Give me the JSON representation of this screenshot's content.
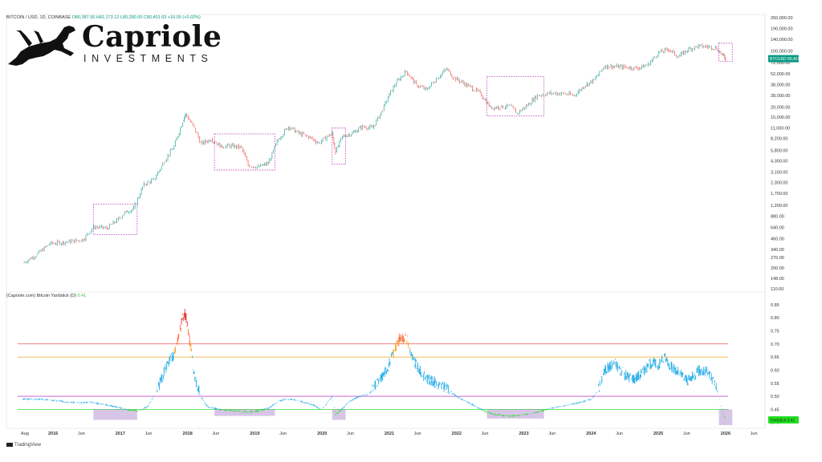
{
  "header": {
    "symbol": "BITCOIN / USD, 1D, COINBASE",
    "ohlc": "O80,387.56  H81,173.12  L80,280.00  C80,401.63  +16.00 (+0.02%)"
  },
  "brand": {
    "name": "Capriole",
    "subtitle": "INVESTMENTS"
  },
  "footer": {
    "source": "TradingView"
  },
  "colors": {
    "accent": "#089981",
    "yardstick": "#29aee6",
    "green": "#22dd22",
    "box": "#c54fc5"
  },
  "chart_data": [
    {
      "type": "line",
      "title": "BITCOIN / USD, 1D, COINBASE",
      "y_scale": "log",
      "y_ticks": [
        "260,000.00",
        "190,000.00",
        "140,000.00",
        "100,000.00",
        "72,000.00",
        "52,000.00",
        "38,000.00",
        "28,000.00",
        "20,000.00",
        "15,000.00",
        "11,000.00",
        "8,200.00",
        "5,800.00",
        "4,300.00",
        "3,100.00",
        "2,300.00",
        "1,700.00",
        "1,200.00",
        "880.00",
        "640.00",
        "460.00",
        "340.00",
        "270.00",
        "200.00",
        "148.00",
        "110.00"
      ],
      "last_value_label": "BTCUSD  80,401.63",
      "series": [
        {
          "x": [
            2015.55,
            2015.75,
            2015.95,
            2016.2,
            2016.45,
            2016.6,
            2016.8,
            2016.95,
            2017.05,
            2017.2,
            2017.35,
            2017.5,
            2017.65,
            2017.8,
            2017.93,
            2017.97,
            2018.1,
            2018.2,
            2018.35,
            2018.5,
            2018.65,
            2018.8,
            2018.9,
            2019.05,
            2019.2,
            2019.35,
            2019.5,
            2019.65,
            2019.8,
            2019.95,
            2020.15,
            2020.2,
            2020.3,
            2020.45,
            2020.6,
            2020.75,
            2020.9,
            2021.0,
            2021.1,
            2021.25,
            2021.4,
            2021.55,
            2021.7,
            2021.85,
            2021.95,
            2022.1,
            2022.35,
            2022.5,
            2022.65,
            2022.8,
            2022.9,
            2023.05,
            2023.2,
            2023.4,
            2023.6,
            2023.75,
            2023.9,
            2024.05,
            2024.2,
            2024.5,
            2024.7,
            2024.85,
            2025.0,
            2025.15,
            2025.3,
            2025.45,
            2025.6,
            2025.75,
            2025.85,
            2025.95,
            2026.0
          ],
          "y": [
            230,
            290,
            400,
            420,
            450,
            650,
            620,
            780,
            950,
            1100,
            2200,
            2500,
            4200,
            6500,
            13500,
            16500,
            11000,
            7000,
            8000,
            6500,
            6600,
            6300,
            3800,
            3600,
            4000,
            8000,
            11500,
            9500,
            8500,
            7200,
            9500,
            5500,
            8600,
            9500,
            11500,
            11000,
            18500,
            29000,
            40000,
            56000,
            38000,
            33000,
            45000,
            60000,
            47000,
            40000,
            30000,
            20000,
            20000,
            20500,
            16800,
            21000,
            28000,
            30000,
            29500,
            28000,
            37000,
            44000,
            65000,
            63000,
            61000,
            68000,
            95000,
            105000,
            85000,
            106000,
            115000,
            113000,
            110000,
            90000,
            80400
          ]
        }
      ],
      "highlight_boxes": [
        {
          "x": [
            2016.6,
            2017.25
          ],
          "y": [
            520,
            1240
          ]
        },
        {
          "x": [
            2018.4,
            2019.3
          ],
          "y": [
            3300,
            9300
          ]
        },
        {
          "x": [
            2020.15,
            2020.35
          ],
          "y": [
            3900,
            11000
          ]
        },
        {
          "x": [
            2022.45,
            2023.3
          ],
          "y": [
            15600,
            48000
          ]
        },
        {
          "x": [
            2025.9,
            2026.1
          ],
          "y": [
            74000,
            125000
          ]
        }
      ]
    },
    {
      "type": "line",
      "title": "(Capriole.com) Bitcoin Yardstick (D)",
      "last_value": "0.41",
      "value_badge": "Yardstick  0.41",
      "y_ticks": [
        "0.85",
        "0.80",
        "0.75",
        "0.70",
        "0.65",
        "0.60",
        "0.55",
        "0.50",
        "0.45",
        "0.40"
      ],
      "ylim": [
        0.39,
        0.88
      ],
      "levels": [
        {
          "value": 0.7,
          "color": "#ef5350"
        },
        {
          "value": 0.65,
          "color": "#f5a623"
        },
        {
          "value": 0.5,
          "color": "#c54fc5"
        },
        {
          "value": 0.45,
          "color": "#33dd33"
        }
      ],
      "series": [
        {
          "name": "Yardstick",
          "x": [
            2015.55,
            2015.8,
            2016.0,
            2016.2,
            2016.4,
            2016.55,
            2016.75,
            2016.95,
            2017.1,
            2017.25,
            2017.4,
            2017.5,
            2017.6,
            2017.7,
            2017.8,
            2017.87,
            2017.95,
            2017.98,
            2018.05,
            2018.1,
            2018.2,
            2018.3,
            2018.5,
            2018.7,
            2018.9,
            2019.05,
            2019.2,
            2019.35,
            2019.45,
            2019.55,
            2019.7,
            2019.85,
            2020.0,
            2020.15,
            2020.2,
            2020.25,
            2020.4,
            2020.55,
            2020.7,
            2020.85,
            2020.95,
            2021.05,
            2021.15,
            2021.25,
            2021.35,
            2021.45,
            2021.55,
            2021.7,
            2021.85,
            2022.0,
            2022.15,
            2022.3,
            2022.45,
            2022.6,
            2022.8,
            2023.0,
            2023.2,
            2023.4,
            2023.6,
            2023.8,
            2024.0,
            2024.1,
            2024.2,
            2024.35,
            2024.5,
            2024.65,
            2024.8,
            2024.9,
            2025.0,
            2025.1,
            2025.2,
            2025.35,
            2025.45,
            2025.6,
            2025.75,
            2025.85,
            2025.9,
            2025.95,
            2026.0
          ],
          "y": [
            0.49,
            0.49,
            0.485,
            0.48,
            0.475,
            0.48,
            0.47,
            0.46,
            0.45,
            0.445,
            0.46,
            0.5,
            0.56,
            0.62,
            0.66,
            0.74,
            0.82,
            0.8,
            0.68,
            0.58,
            0.5,
            0.46,
            0.45,
            0.445,
            0.44,
            0.445,
            0.455,
            0.48,
            0.49,
            0.49,
            0.48,
            0.47,
            0.45,
            0.5,
            0.43,
            0.44,
            0.48,
            0.5,
            0.51,
            0.56,
            0.6,
            0.66,
            0.72,
            0.73,
            0.64,
            0.6,
            0.57,
            0.55,
            0.53,
            0.5,
            0.48,
            0.46,
            0.44,
            0.43,
            0.425,
            0.43,
            0.44,
            0.455,
            0.465,
            0.475,
            0.49,
            0.52,
            0.6,
            0.63,
            0.58,
            0.57,
            0.6,
            0.63,
            0.62,
            0.65,
            0.61,
            0.58,
            0.56,
            0.6,
            0.59,
            0.55,
            0.5,
            0.44,
            0.41
          ]
        }
      ],
      "highlight_boxes": [
        {
          "x": [
            2016.6,
            2017.25
          ],
          "y": [
            0.41,
            0.45
          ]
        },
        {
          "x": [
            2018.4,
            2019.3
          ],
          "y": [
            0.425,
            0.45
          ]
        },
        {
          "x": [
            2020.15,
            2020.35
          ],
          "y": [
            0.41,
            0.45
          ]
        },
        {
          "x": [
            2022.45,
            2023.3
          ],
          "y": [
            0.415,
            0.45
          ]
        },
        {
          "x": [
            2025.9,
            2026.1
          ],
          "y": [
            0.39,
            0.45
          ]
        }
      ],
      "x_tick_labels": [
        "Aug",
        "2016",
        "Jun",
        "2017",
        "Jun",
        "2018",
        "Jun",
        "2019",
        "Jun",
        "2020",
        "Jun",
        "2021",
        "Jun",
        "2022",
        "Jun",
        "2023",
        "Jun",
        "2024",
        "Jun",
        "2025",
        "Jun",
        "2026",
        "Jun"
      ],
      "x_tick_values": [
        2015.58,
        2016.0,
        2016.42,
        2017.0,
        2017.42,
        2018.0,
        2018.42,
        2019.0,
        2019.42,
        2020.0,
        2020.42,
        2021.0,
        2021.42,
        2022.0,
        2022.42,
        2023.0,
        2023.42,
        2024.0,
        2024.42,
        2025.0,
        2025.42,
        2026.0,
        2026.42
      ]
    }
  ]
}
